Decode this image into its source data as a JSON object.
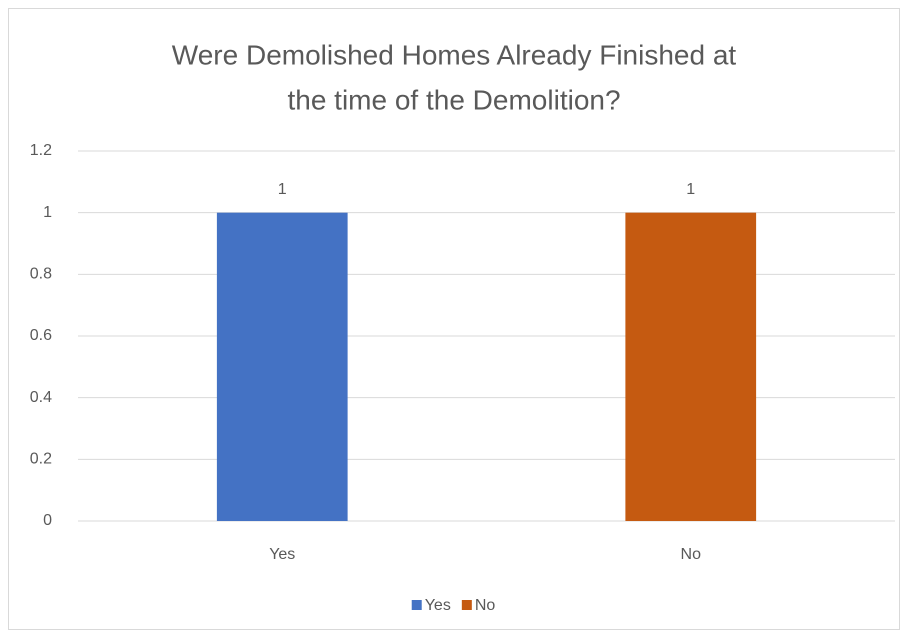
{
  "chart_data": {
    "type": "bar",
    "title": [
      "Were Demolished Homes Already Finished at",
      "the time of the Demolition?"
    ],
    "categories": [
      "Yes",
      "No"
    ],
    "values": [
      1,
      1
    ],
    "colors": [
      "#4472c4",
      "#c55a11"
    ],
    "ylim": [
      0,
      1.2
    ],
    "yticks": [
      0,
      0.2,
      0.4,
      0.6,
      0.8,
      1,
      1.2
    ],
    "grid": true,
    "legend": "bottom"
  }
}
